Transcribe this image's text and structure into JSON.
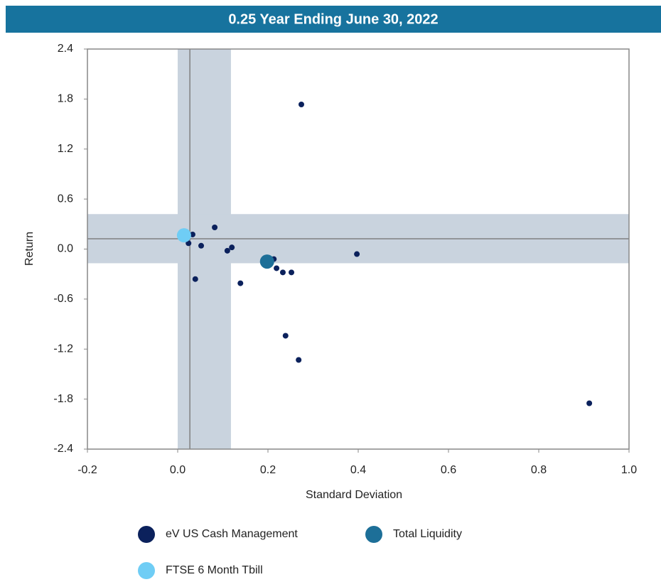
{
  "chart_data": {
    "type": "scatter",
    "title": "0.25 Year Ending June 30, 2022",
    "x_label": "Standard Deviation",
    "y_label": "Return",
    "xlim": [
      -0.2,
      1.0
    ],
    "ylim": [
      -2.4,
      2.4
    ],
    "xticks": [
      -0.2,
      {
        "value": 0,
        "label": "0.0"
      },
      0.2,
      0.4,
      0.6,
      0.8,
      {
        "value": 1,
        "label": "1.0"
      }
    ],
    "yticks": [
      2.4,
      1.8,
      1.2,
      0.6,
      {
        "value": 0,
        "label": "0.0"
      },
      -0.6,
      -1.2,
      -1.8,
      -2.4
    ],
    "bands": {
      "x": [
        0,
        0.118
      ],
      "y": [
        -0.17,
        0.42
      ],
      "color": "#c9d3de"
    },
    "median": {
      "x": 0.027,
      "y": 0.124,
      "color": "#808080"
    },
    "series": [
      {
        "name": "eV US Cash Management",
        "color": "#0b215c",
        "x": [
          0.274,
          0.082,
          0.016,
          0.033,
          0.024,
          0.052,
          0.12,
          0.11,
          0.039,
          0.139,
          0.213,
          0.219,
          0.233,
          0.252,
          0.397,
          0.239,
          0.268,
          0.912
        ],
        "values": [
          1.735,
          0.26,
          0.175,
          0.175,
          0.07,
          0.04,
          0.02,
          -0.02,
          -0.36,
          -0.41,
          -0.12,
          -0.23,
          -0.28,
          -0.28,
          -0.06,
          -1.04,
          -1.33,
          -1.85
        ]
      },
      {
        "name": "Total Liquidity",
        "color": "#1d6f98",
        "x": [
          0.198
        ],
        "values": [
          -0.15
        ]
      },
      {
        "name": "FTSE 6 Month Tbill",
        "color": "#6fcdf5",
        "x": [
          0.014
        ],
        "values": [
          0.165
        ]
      }
    ]
  }
}
